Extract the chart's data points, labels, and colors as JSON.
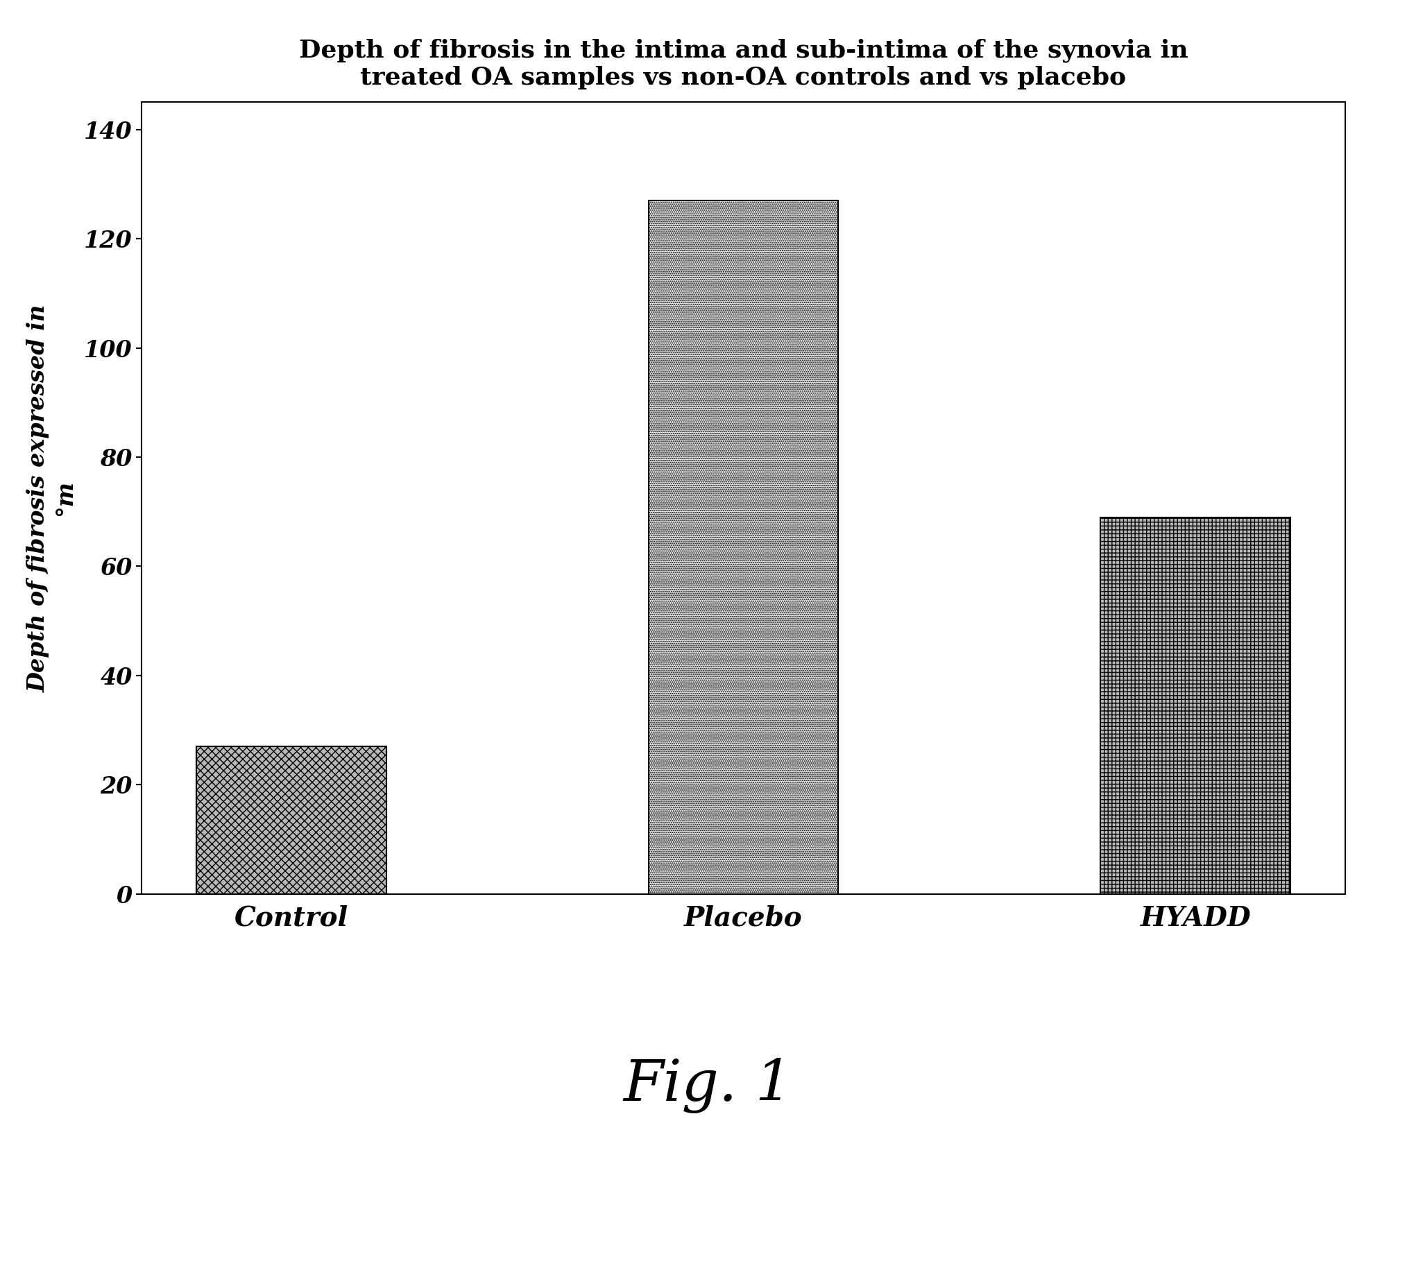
{
  "title_line1": "Depth of fibrosis in the intima and sub-intima of the synovia in",
  "title_line2": "treated OA samples vs non-OA controls and vs placebo",
  "categories": [
    "Control",
    "Placebo",
    "HYADD"
  ],
  "values": [
    27,
    127,
    69
  ],
  "ylim": [
    0,
    145
  ],
  "yticks": [
    0,
    20,
    40,
    60,
    80,
    100,
    120,
    140
  ],
  "background_color": "#ffffff",
  "figure_background": "#ffffff",
  "fig_caption": "Fig. 1",
  "bar_face_colors": [
    "#b8b8b8",
    "#e8e8e8",
    "#b8b8b8"
  ],
  "bar_edge_color": "#000000",
  "bar_width": 0.42,
  "title_fontsize": 26,
  "tick_label_fontsize": 24,
  "xlabel_fontsize": 28,
  "ylabel_fontsize": 24,
  "caption_fontsize": 60
}
